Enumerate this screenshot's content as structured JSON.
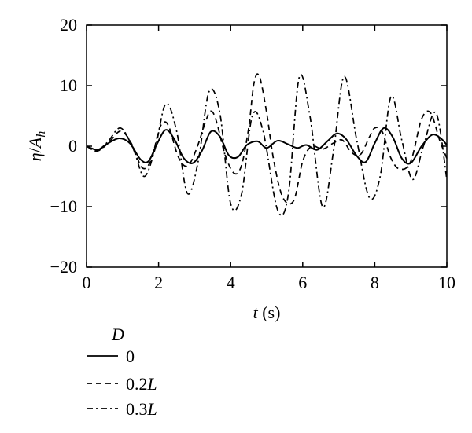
{
  "chart_data": {
    "type": "line",
    "xlabel_var": "t",
    "xlabel_unit": " (s)",
    "ylabel_var": "η",
    "ylabel_sep": "/",
    "ylabel_var2": "A",
    "ylabel_sub": "h",
    "xlim": [
      0,
      10
    ],
    "ylim": [
      -20,
      20
    ],
    "x_ticks": [
      0,
      2,
      4,
      6,
      8,
      10
    ],
    "y_ticks": [
      -20,
      -10,
      0,
      10,
      20
    ],
    "x_tick_labels": [
      "0",
      "2",
      "4",
      "6",
      "8",
      "10"
    ],
    "y_tick_labels": [
      "−20",
      "−10",
      "0",
      "10",
      "20"
    ],
    "grid": false,
    "legend": {
      "title": "D",
      "placement": "below-left",
      "entries": [
        {
          "pre": "0",
          "italic": ""
        },
        {
          "pre": "0.2",
          "italic": "L"
        },
        {
          "pre": "0.3",
          "italic": "L"
        }
      ]
    },
    "series": [
      {
        "name": "0",
        "style": "solid",
        "x": [
          0,
          0.3,
          0.55,
          0.9,
          1.2,
          1.5,
          1.72,
          1.95,
          2.2,
          2.45,
          2.7,
          2.95,
          3.2,
          3.45,
          3.7,
          3.95,
          4.2,
          4.45,
          4.75,
          5.0,
          5.3,
          5.6,
          5.85,
          6.1,
          6.4,
          6.7,
          6.95,
          7.2,
          7.5,
          7.75,
          8.0,
          8.25,
          8.5,
          8.75,
          9.0,
          9.3,
          9.6,
          9.85,
          10.0
        ],
        "y": [
          0,
          -0.6,
          0.3,
          1.3,
          0.5,
          -2.2,
          -2.5,
          0.3,
          2.7,
          1.0,
          -2.0,
          -2.8,
          -0.8,
          2.4,
          1.6,
          -1.5,
          -1.8,
          0.2,
          0.8,
          -0.3,
          0.9,
          0.3,
          -0.3,
          0.2,
          -0.6,
          0.9,
          2.1,
          1.2,
          -1.6,
          -2.6,
          0.5,
          3.0,
          1.5,
          -2.0,
          -2.8,
          0.0,
          1.9,
          1.2,
          0.2
        ]
      },
      {
        "name": "0.2L",
        "style": "dashed",
        "x": [
          0,
          0.3,
          0.6,
          0.95,
          1.25,
          1.55,
          1.8,
          2.0,
          2.15,
          2.3,
          2.55,
          2.8,
          3.05,
          3.3,
          3.45,
          3.6,
          3.85,
          4.1,
          4.3,
          4.5,
          4.65,
          4.8,
          5.0,
          5.2,
          5.45,
          5.75,
          6.0,
          6.25,
          6.55,
          6.85,
          7.1,
          7.35,
          7.6,
          7.85,
          8.0,
          8.2,
          8.45,
          8.7,
          9.0,
          9.3,
          9.55,
          9.8,
          10.0
        ],
        "y": [
          0,
          -0.8,
          0.5,
          2.5,
          0.4,
          -3.6,
          -2.2,
          2.5,
          4.0,
          3.0,
          -1.8,
          -3.3,
          -0.5,
          4.0,
          5.8,
          4.2,
          -1.5,
          -4.5,
          -3.2,
          3.0,
          10.5,
          11.5,
          5.5,
          -2.5,
          -8.5,
          -9.0,
          -2.5,
          0.0,
          -0.5,
          0.5,
          1.0,
          -1.0,
          -1.4,
          1.5,
          3.0,
          2.5,
          -2.0,
          -3.8,
          -2.5,
          4.5,
          5.5,
          1.0,
          -2.0
        ]
      },
      {
        "name": "0.3L",
        "style": "dashdot",
        "x": [
          0,
          0.3,
          0.6,
          0.95,
          1.3,
          1.6,
          1.9,
          2.2,
          2.5,
          2.8,
          3.1,
          3.4,
          3.7,
          4.0,
          4.3,
          4.6,
          4.9,
          5.3,
          5.6,
          5.9,
          6.2,
          6.55,
          6.85,
          7.15,
          7.5,
          7.85,
          8.15,
          8.45,
          8.75,
          9.05,
          9.35,
          9.7,
          10.0
        ],
        "y": [
          0,
          -0.8,
          0.8,
          3.0,
          -0.5,
          -5.0,
          -0.5,
          7.0,
          2.5,
          -7.8,
          -2.5,
          9.0,
          5.5,
          -9.5,
          -8.0,
          5.0,
          2.5,
          -10.5,
          -8.0,
          11.3,
          5.0,
          -10.0,
          -1.0,
          11.5,
          1.0,
          -8.5,
          -5.0,
          8.2,
          1.0,
          -5.5,
          0.0,
          5.5,
          -5.5
        ]
      }
    ]
  }
}
